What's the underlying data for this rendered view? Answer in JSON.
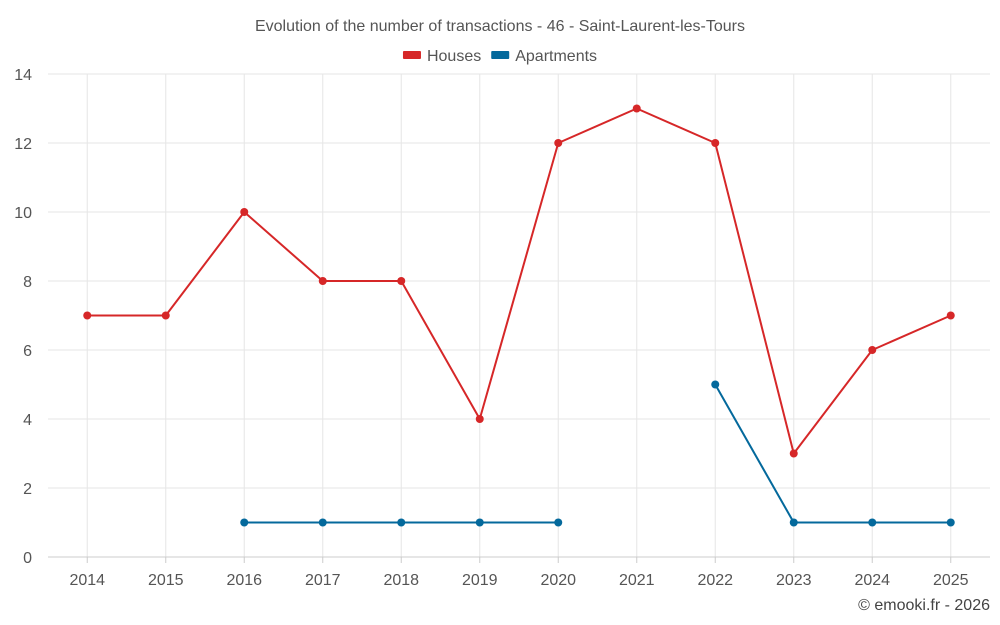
{
  "chart_data": {
    "type": "line",
    "title": "Evolution of the number of transactions - 46 - Saint-Laurent-les-Tours",
    "xlabel": "",
    "ylabel": "",
    "categories": [
      "2014",
      "2015",
      "2016",
      "2017",
      "2018",
      "2019",
      "2020",
      "2021",
      "2022",
      "2023",
      "2024",
      "2025"
    ],
    "ylim": [
      0,
      14
    ],
    "yticks": [
      0,
      2,
      4,
      6,
      8,
      10,
      12,
      14
    ],
    "grid": true,
    "legend_position": "top-center",
    "series": [
      {
        "name": "Houses",
        "color": "#d62728",
        "values": [
          7,
          7,
          10,
          8,
          8,
          4,
          12,
          13,
          12,
          3,
          6,
          7
        ]
      },
      {
        "name": "Apartments",
        "color": "#04699c",
        "values": [
          null,
          null,
          1,
          1,
          1,
          1,
          1,
          null,
          5,
          1,
          1,
          1
        ]
      }
    ]
  },
  "credit": "© emooki.fr - 2026"
}
